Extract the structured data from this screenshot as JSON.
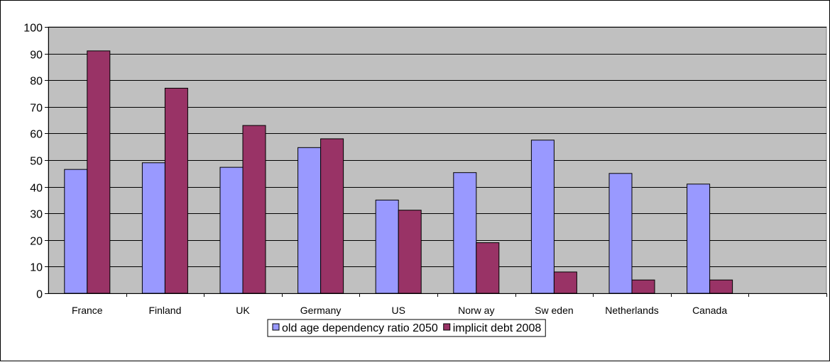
{
  "chart_data": {
    "type": "bar",
    "categories": [
      "France",
      "Finland",
      "UK",
      "Germany",
      "US",
      "Norw ay",
      "Sw eden",
      "Netherlands",
      "Canada",
      ""
    ],
    "series": [
      {
        "name": "old age dependency ratio 2050",
        "values": [
          46.5,
          49,
          47.3,
          54.7,
          35,
          45.3,
          57.5,
          45,
          41,
          null
        ],
        "color": "#9999ff"
      },
      {
        "name": "implicit debt 2008",
        "values": [
          91,
          77,
          63,
          58,
          31.2,
          19,
          8,
          5,
          5,
          null
        ],
        "color": "#993366"
      }
    ],
    "ylim": [
      0,
      100
    ],
    "yticks": [
      0,
      10,
      20,
      30,
      40,
      50,
      60,
      70,
      80,
      90,
      100
    ],
    "plot_background": "#c0c0c0",
    "grid": true,
    "legend_position": "bottom"
  }
}
